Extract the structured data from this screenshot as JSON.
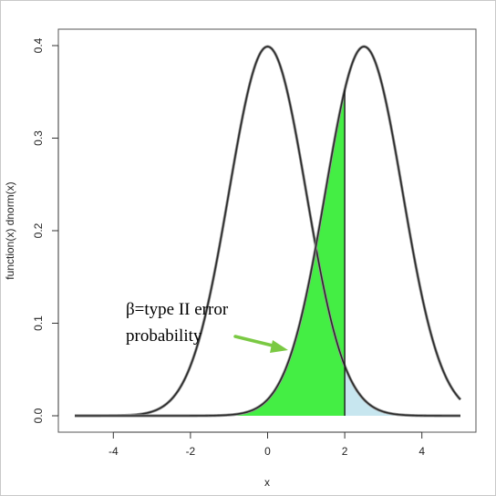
{
  "chart_data": {
    "type": "line",
    "title": "",
    "xlabel": "x",
    "ylabel": "function(x) dnorm(x)",
    "xlim": [
      -5,
      5
    ],
    "ylim": [
      0,
      0.4
    ],
    "x_ticks": [
      -4,
      -2,
      0,
      2,
      4
    ],
    "x_tick_labels": [
      "-4",
      "-2",
      "0",
      "2",
      "4"
    ],
    "y_ticks": [
      0.0,
      0.1,
      0.2,
      0.3,
      0.4
    ],
    "y_tick_labels": [
      "0.0",
      "0.1",
      "0.2",
      "0.3",
      "0.4"
    ],
    "grid": false,
    "series": [
      {
        "mean": 0,
        "sd": 1,
        "x_range": [
          -5,
          5
        ],
        "peak": 0.399,
        "color": "#2a2a2a"
      },
      {
        "mean": 2.5,
        "sd": 1,
        "x_range": [
          -5,
          5
        ],
        "peak": 0.399,
        "color": "#2a2a2a"
      }
    ],
    "shaded_regions": [
      {
        "curve_mean": 2.5,
        "x_from": -5,
        "x_to": 2,
        "color": "#44ee44"
      },
      {
        "curve_mean": 0,
        "x_from": 2,
        "x_to": 5,
        "color": "#c7e6ef"
      }
    ],
    "critical_value_x": 2,
    "annotations": [
      {
        "text_lines": [
          "β=type II error",
          "probability"
        ],
        "arrow_color": "#7ac943"
      }
    ]
  }
}
